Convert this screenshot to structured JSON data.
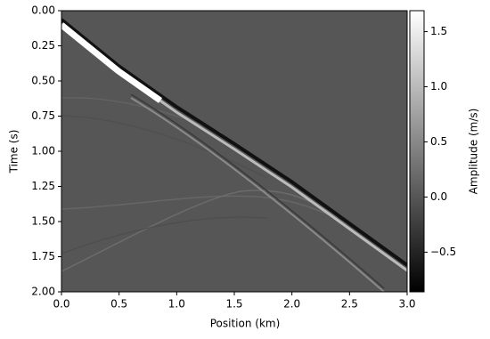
{
  "chart_data": {
    "type": "image",
    "xlabel": "Position (km)",
    "ylabel": "Time (s)",
    "colorbar_label": "Amplitude (m/s)",
    "cmap": "gray",
    "xlim": [
      0.0,
      3.0
    ],
    "xticks": [
      {
        "value": 0.0,
        "label": "0.0"
      },
      0.5,
      {
        "value": 1.0,
        "label": "1.0"
      },
      1.5,
      {
        "value": 2.0,
        "label": "2.0"
      },
      2.5,
      {
        "value": 3.0,
        "label": "3.0"
      }
    ],
    "ylim": [
      2.0,
      0.0
    ],
    "yticks": [
      {
        "value": 0.0,
        "label": "0.00"
      },
      0.25,
      {
        "value": 0.5,
        "label": "0.50"
      },
      0.75,
      {
        "value": 1.0,
        "label": "1.00"
      },
      1.25,
      {
        "value": 1.5,
        "label": "1.50"
      },
      1.75,
      {
        "value": 2.0,
        "label": "2.00"
      }
    ],
    "clim": [
      -0.86,
      1.69
    ],
    "cticks": [
      {
        "value": -0.5,
        "label": "−0.5"
      },
      {
        "value": 0.0,
        "label": "0.0"
      },
      0.5,
      {
        "value": 1.0,
        "label": "1.0"
      },
      1.5
    ]
  }
}
